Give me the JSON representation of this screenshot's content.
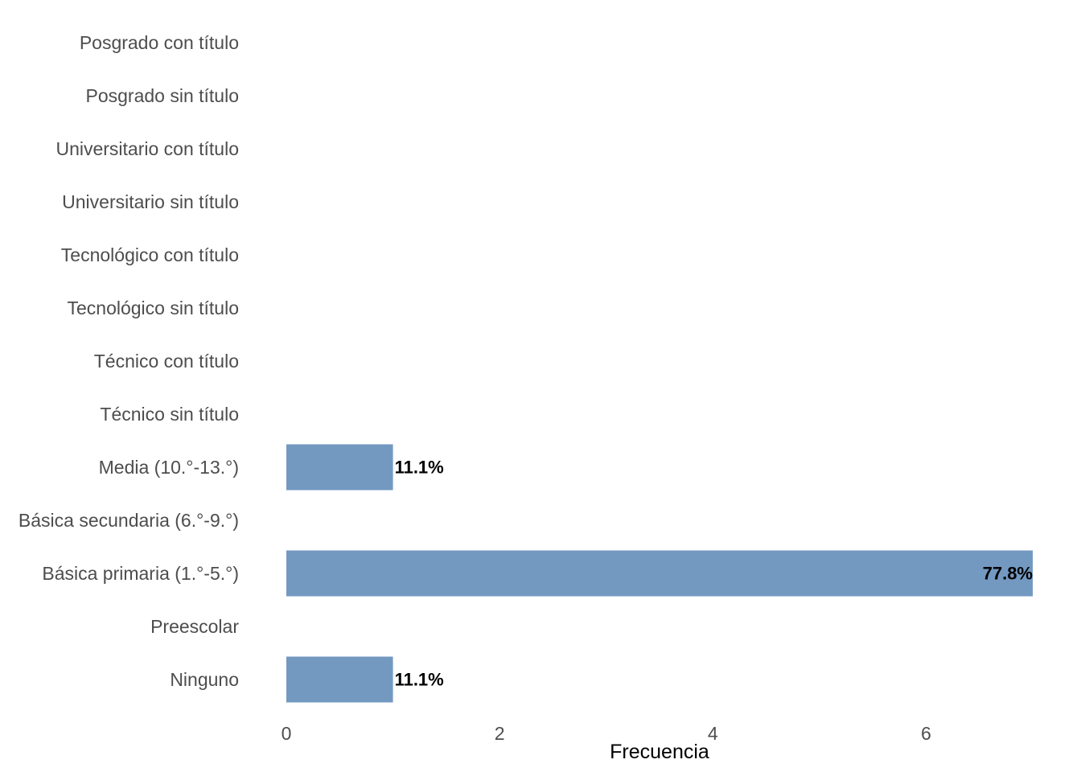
{
  "chart_data": {
    "type": "bar",
    "orientation": "horizontal",
    "categories": [
      "Ninguno",
      "Preescolar",
      "Básica primaria (1.°-5.°)",
      "Básica secundaria (6.°-9.°)",
      "Media (10.°-13.°)",
      "Técnico sin título",
      "Técnico con título",
      "Tecnológico sin título",
      "Tecnológico con título",
      "Universitario sin título",
      "Universitario con título",
      "Posgrado sin título",
      "Posgrado con título"
    ],
    "values": [
      1,
      0,
      7,
      0,
      1,
      0,
      0,
      0,
      0,
      0,
      0,
      0,
      0
    ],
    "data_labels": [
      "11.1%",
      "",
      "77.8%",
      "",
      "11.1%",
      "",
      "",
      "",
      "",
      "",
      "",
      "",
      ""
    ],
    "xlabel": "Frecuencia",
    "ylabel": "",
    "xlim": [
      0,
      7
    ],
    "xticks": [
      0,
      2,
      4,
      6
    ],
    "xtick_labels": [
      "0",
      "2",
      "4",
      "6"
    ],
    "grid": false,
    "legend": "none",
    "bar_color": "#7399c1"
  }
}
